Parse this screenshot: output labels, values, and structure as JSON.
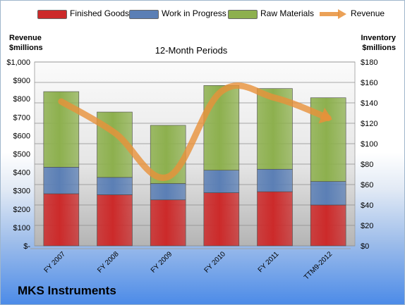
{
  "chart_data": {
    "type": "bar",
    "title": "12-Month Periods",
    "company": "MKS Instruments",
    "left_axis_title": [
      "Revenue",
      "$millions"
    ],
    "right_axis_title": [
      "Inventory",
      "$millions"
    ],
    "categories": [
      "FY 2007",
      "FY 2008",
      "FY 2009",
      "FY 2010",
      "FY 2011",
      "TTM9-2012"
    ],
    "left_ticks": [
      "$-",
      "$100",
      "$200",
      "$300",
      "$400",
      "$500",
      "$600",
      "$700",
      "$800",
      "$900",
      "$1,000"
    ],
    "right_ticks": [
      "$0",
      "$20",
      "$40",
      "$60",
      "$80",
      "$100",
      "$120",
      "$140",
      "$160",
      "$180"
    ],
    "ylim_left": [
      0,
      1000
    ],
    "ylim_right": [
      0,
      180
    ],
    "grid": true,
    "legend_position": "top",
    "series": [
      {
        "name": "Finished Goods",
        "axis": "right",
        "stack": true,
        "color": "#cc2a2a",
        "values": [
          51,
          50,
          45,
          52,
          53,
          40
        ]
      },
      {
        "name": "Work in Progress",
        "axis": "right",
        "stack": true,
        "color": "#5b7fb5",
        "values": [
          26,
          17,
          16,
          22,
          22,
          23
        ]
      },
      {
        "name": "Raw Materials",
        "axis": "right",
        "stack": true,
        "color": "#8db04e",
        "values": [
          74,
          64,
          57,
          83,
          79,
          82
        ]
      },
      {
        "name": "Revenue",
        "axis": "left",
        "type": "line",
        "color": "#e8913a",
        "values": [
          785,
          615,
          375,
          840,
          805,
          695
        ]
      }
    ]
  }
}
